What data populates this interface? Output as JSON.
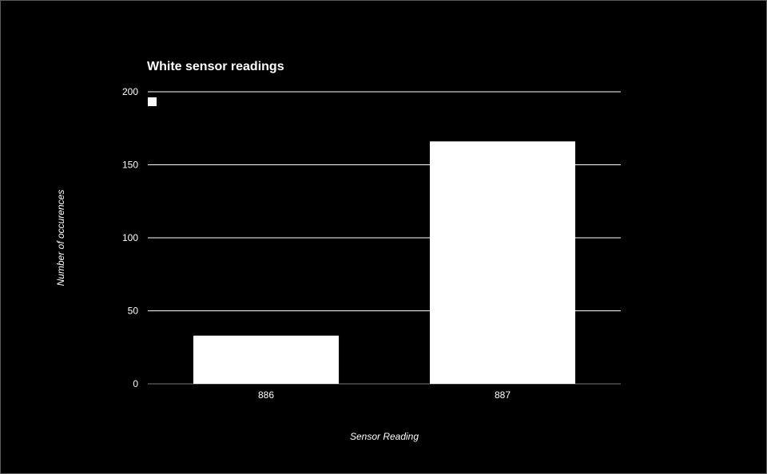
{
  "chart_data": {
    "type": "bar",
    "title": "White sensor readings",
    "xlabel": "Sensor Reading",
    "ylabel": "Number of occurences",
    "categories": [
      "886",
      "887"
    ],
    "series": [
      {
        "values": [
          33,
          166
        ]
      }
    ],
    "ylim": [
      0,
      200
    ],
    "yticks": [
      0,
      50,
      100,
      150,
      200
    ],
    "grid": true,
    "legend_position": "top-left",
    "colors": {
      "background": "#000000",
      "bar": "#ffffff",
      "gridline": "#ffffff",
      "text": "#ffffff"
    }
  }
}
